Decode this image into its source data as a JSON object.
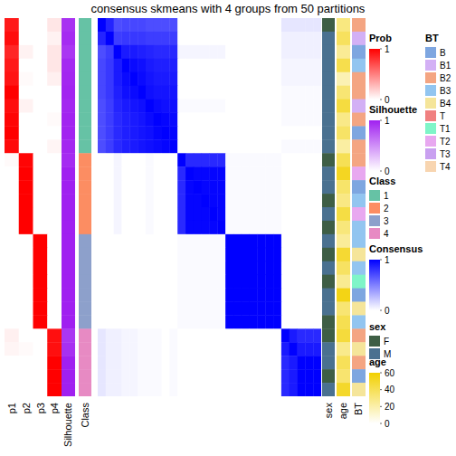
{
  "chart_data": {
    "type": "heatmap",
    "title": "consensus skmeans with 4 groups from 50 partitions",
    "tick_labels": false,
    "prob": {
      "legend_title": "Prob",
      "labels": [
        "p1",
        "p2",
        "p3",
        "p4"
      ],
      "colors": [
        "#FFFFFF",
        "#FF0000"
      ],
      "range": [
        0,
        1
      ],
      "ticks": [
        0,
        1
      ],
      "values": [
        [
          0.9,
          0,
          0,
          0.1
        ],
        [
          0.95,
          0,
          0,
          0.05
        ],
        [
          0.85,
          0.05,
          0,
          0.1
        ],
        [
          0.9,
          0,
          0,
          0.1
        ],
        [
          0.92,
          0.02,
          0,
          0.06
        ],
        [
          1,
          0,
          0,
          0
        ],
        [
          0.95,
          0.05,
          0,
          0
        ],
        [
          0.98,
          0,
          0,
          0.02
        ],
        [
          1,
          0,
          0,
          0
        ],
        [
          0.96,
          0,
          0,
          0.04
        ],
        [
          0.02,
          0.98,
          0,
          0
        ],
        [
          0,
          1,
          0,
          0
        ],
        [
          0,
          1,
          0,
          0
        ],
        [
          0,
          1,
          0,
          0
        ],
        [
          0,
          1,
          0,
          0
        ],
        [
          0,
          1,
          0,
          0
        ],
        [
          0,
          0,
          1,
          0
        ],
        [
          0,
          0,
          1,
          0
        ],
        [
          0,
          0,
          1,
          0
        ],
        [
          0,
          0,
          1,
          0
        ],
        [
          0,
          0,
          1,
          0
        ],
        [
          0,
          0,
          1,
          0
        ],
        [
          0,
          0,
          1,
          0
        ],
        [
          0.06,
          0,
          0,
          0.94
        ],
        [
          0.04,
          0.02,
          0,
          0.94
        ],
        [
          0,
          0,
          0,
          1
        ],
        [
          0,
          0,
          0,
          1
        ],
        [
          0,
          0,
          0,
          1
        ]
      ]
    },
    "silhouette": {
      "label": "Silhouette",
      "colors": [
        "#FFFFFF",
        "#A020F0"
      ],
      "range": [
        0,
        1
      ],
      "ticks": [
        0,
        1
      ],
      "values": [
        0.92,
        0.95,
        0.9,
        0.96,
        0.97,
        0.98,
        0.97,
        0.98,
        0.98,
        0.97,
        0.95,
        1,
        1,
        1,
        1,
        1,
        1,
        1,
        1,
        1,
        1,
        1,
        1,
        0.9,
        0.93,
        1,
        1,
        1
      ]
    },
    "class": {
      "label": "Class",
      "categories": [
        1,
        2,
        3,
        4
      ],
      "colors": [
        "#66C2A5",
        "#FC8D62",
        "#8DA0CB",
        "#E78AC3"
      ],
      "values": [
        1,
        1,
        1,
        1,
        1,
        1,
        1,
        1,
        1,
        1,
        2,
        2,
        2,
        2,
        2,
        2,
        3,
        3,
        3,
        3,
        3,
        3,
        3,
        4,
        4,
        4,
        4,
        4
      ]
    },
    "consensus": {
      "legend_title": "Consensus",
      "colors": [
        "#FFFFFF",
        "#0000FF"
      ],
      "range": [
        0,
        1
      ],
      "ticks": [
        0,
        1
      ],
      "values": [
        [
          1,
          0.86,
          0.7,
          0.72,
          0.72,
          0.72,
          0.7,
          0.7,
          0.7,
          0.7,
          0,
          0,
          0,
          0,
          0,
          0,
          0,
          0,
          0,
          0,
          0,
          0,
          0,
          0.1,
          0.1,
          0.1,
          0.1,
          0.1
        ],
        [
          0.86,
          1,
          0.76,
          0.78,
          0.78,
          0.78,
          0.76,
          0.76,
          0.76,
          0.76,
          0,
          0,
          0,
          0,
          0,
          0,
          0,
          0,
          0,
          0,
          0,
          0,
          0,
          0.06,
          0.06,
          0.06,
          0.06,
          0.06
        ],
        [
          0.7,
          0.76,
          1,
          0.9,
          0.9,
          0.88,
          0.86,
          0.84,
          0.84,
          0.84,
          0.04,
          0.04,
          0.04,
          0.04,
          0.04,
          0.04,
          0,
          0,
          0,
          0,
          0,
          0,
          0,
          0.06,
          0.06,
          0.06,
          0.06,
          0.06
        ],
        [
          0.72,
          0.78,
          0.9,
          1,
          0.96,
          0.94,
          0.9,
          0.88,
          0.88,
          0.88,
          0,
          0,
          0,
          0,
          0,
          0,
          0,
          0,
          0,
          0,
          0,
          0,
          0,
          0.04,
          0.04,
          0.04,
          0.04,
          0.04
        ],
        [
          0.72,
          0.78,
          0.9,
          0.96,
          1,
          0.96,
          0.92,
          0.9,
          0.9,
          0.9,
          0,
          0,
          0,
          0,
          0,
          0,
          0,
          0,
          0,
          0,
          0,
          0,
          0,
          0.04,
          0.04,
          0.04,
          0.04,
          0.04
        ],
        [
          0.72,
          0.78,
          0.88,
          0.94,
          0.96,
          1,
          0.94,
          0.92,
          0.92,
          0.92,
          0,
          0,
          0,
          0,
          0,
          0,
          0,
          0,
          0,
          0,
          0,
          0,
          0,
          0.02,
          0.02,
          0.02,
          0.02,
          0.02
        ],
        [
          0.7,
          0.76,
          0.86,
          0.9,
          0.92,
          0.94,
          1,
          0.96,
          0.94,
          0.94,
          0.02,
          0.02,
          0.02,
          0.02,
          0.02,
          0.02,
          0,
          0,
          0,
          0,
          0,
          0,
          0,
          0.02,
          0.02,
          0.02,
          0.02,
          0.02
        ],
        [
          0.7,
          0.76,
          0.84,
          0.88,
          0.9,
          0.92,
          0.96,
          1,
          0.98,
          0.96,
          0,
          0,
          0,
          0,
          0,
          0,
          0,
          0,
          0,
          0,
          0,
          0,
          0,
          0.02,
          0.02,
          0.02,
          0.02,
          0.02
        ],
        [
          0.7,
          0.76,
          0.84,
          0.88,
          0.9,
          0.92,
          0.94,
          0.98,
          1,
          0.98,
          0,
          0,
          0,
          0,
          0,
          0,
          0,
          0,
          0,
          0,
          0,
          0,
          0,
          0,
          0,
          0,
          0,
          0
        ],
        [
          0.7,
          0.76,
          0.84,
          0.88,
          0.9,
          0.92,
          0.94,
          0.96,
          0.98,
          1,
          0,
          0,
          0,
          0,
          0,
          0,
          0,
          0,
          0,
          0,
          0,
          0,
          0,
          0.02,
          0.02,
          0.02,
          0.02,
          0.02
        ],
        [
          0,
          0,
          0.04,
          0,
          0,
          0,
          0.02,
          0,
          0,
          0,
          1,
          0.84,
          0.84,
          0.84,
          0.84,
          0.84,
          0.02,
          0.02,
          0.02,
          0.02,
          0.02,
          0.02,
          0.02,
          0,
          0,
          0,
          0,
          0
        ],
        [
          0,
          0,
          0.04,
          0,
          0,
          0,
          0.02,
          0,
          0,
          0,
          0.84,
          1,
          0.98,
          0.98,
          0.98,
          0.98,
          0.02,
          0.02,
          0.02,
          0.02,
          0.02,
          0.02,
          0.02,
          0,
          0,
          0,
          0,
          0
        ],
        [
          0,
          0,
          0.04,
          0,
          0,
          0,
          0.02,
          0,
          0,
          0,
          0.84,
          0.98,
          1,
          0.98,
          0.98,
          0.98,
          0.02,
          0.02,
          0.02,
          0.02,
          0.02,
          0.02,
          0.02,
          0,
          0,
          0,
          0,
          0
        ],
        [
          0,
          0,
          0.04,
          0,
          0,
          0,
          0.02,
          0,
          0,
          0,
          0.84,
          0.98,
          0.98,
          1,
          0.98,
          0.98,
          0.02,
          0.02,
          0.02,
          0.02,
          0.02,
          0.02,
          0.02,
          0,
          0,
          0,
          0,
          0
        ],
        [
          0,
          0,
          0.04,
          0,
          0,
          0,
          0.02,
          0,
          0,
          0,
          0.84,
          0.98,
          0.98,
          0.98,
          1,
          0.98,
          0.02,
          0.02,
          0.02,
          0.02,
          0.02,
          0.02,
          0.02,
          0,
          0,
          0,
          0,
          0
        ],
        [
          0,
          0,
          0.04,
          0,
          0,
          0,
          0.02,
          0,
          0,
          0,
          0.84,
          0.98,
          0.98,
          0.98,
          0.98,
          1,
          0.02,
          0.02,
          0.02,
          0.02,
          0.02,
          0.02,
          0.02,
          0,
          0,
          0,
          0,
          0
        ],
        [
          0,
          0,
          0,
          0,
          0,
          0,
          0,
          0,
          0,
          0,
          0.02,
          0.02,
          0.02,
          0.02,
          0.02,
          0.02,
          1,
          1,
          1,
          1,
          1,
          1,
          1,
          0,
          0,
          0,
          0,
          0
        ],
        [
          0,
          0,
          0,
          0,
          0,
          0,
          0,
          0,
          0,
          0,
          0.02,
          0.02,
          0.02,
          0.02,
          0.02,
          0.02,
          1,
          1,
          1,
          1,
          1,
          1,
          1,
          0,
          0,
          0,
          0,
          0
        ],
        [
          0,
          0,
          0,
          0,
          0,
          0,
          0,
          0,
          0,
          0,
          0.02,
          0.02,
          0.02,
          0.02,
          0.02,
          0.02,
          1,
          1,
          1,
          1,
          1,
          1,
          1,
          0,
          0,
          0,
          0,
          0
        ],
        [
          0,
          0,
          0,
          0,
          0,
          0,
          0,
          0,
          0,
          0,
          0.02,
          0.02,
          0.02,
          0.02,
          0.02,
          0.02,
          1,
          1,
          1,
          1,
          1,
          1,
          1,
          0,
          0,
          0,
          0,
          0
        ],
        [
          0,
          0,
          0,
          0,
          0,
          0,
          0,
          0,
          0,
          0,
          0.02,
          0.02,
          0.02,
          0.02,
          0.02,
          0.02,
          1,
          1,
          1,
          1,
          1,
          1,
          1,
          0,
          0,
          0,
          0,
          0
        ],
        [
          0,
          0,
          0,
          0,
          0,
          0,
          0,
          0,
          0,
          0,
          0.02,
          0.02,
          0.02,
          0.02,
          0.02,
          0.02,
          1,
          1,
          1,
          1,
          1,
          1,
          1,
          0,
          0,
          0,
          0,
          0
        ],
        [
          0,
          0,
          0,
          0,
          0,
          0,
          0,
          0,
          0,
          0,
          0.02,
          0.02,
          0.02,
          0.02,
          0.02,
          0.02,
          1,
          1,
          1,
          1,
          1,
          1,
          1,
          0,
          0,
          0,
          0,
          0
        ],
        [
          0.1,
          0.06,
          0.06,
          0.04,
          0.04,
          0.02,
          0.02,
          0.02,
          0,
          0.02,
          0,
          0,
          0,
          0,
          0,
          0,
          0,
          0,
          0,
          0,
          0,
          0,
          0,
          1,
          0.9,
          0.84,
          0.84,
          0.84
        ],
        [
          0.1,
          0.06,
          0.06,
          0.04,
          0.04,
          0.02,
          0.02,
          0.02,
          0,
          0.02,
          0,
          0,
          0,
          0,
          0,
          0,
          0,
          0,
          0,
          0,
          0,
          0,
          0,
          0.9,
          1,
          0.9,
          0.9,
          0.9
        ],
        [
          0.1,
          0.06,
          0.06,
          0.04,
          0.04,
          0.02,
          0.02,
          0.02,
          0,
          0.02,
          0,
          0,
          0,
          0,
          0,
          0,
          0,
          0,
          0,
          0,
          0,
          0,
          0,
          0.84,
          0.9,
          1,
          1,
          1
        ],
        [
          0.1,
          0.06,
          0.06,
          0.04,
          0.04,
          0.02,
          0.02,
          0.02,
          0,
          0.02,
          0,
          0,
          0,
          0,
          0,
          0,
          0,
          0,
          0,
          0,
          0,
          0,
          0,
          0.84,
          0.9,
          1,
          1,
          1
        ],
        [
          0.1,
          0.06,
          0.06,
          0.04,
          0.04,
          0.02,
          0.02,
          0.02,
          0,
          0.02,
          0,
          0,
          0,
          0,
          0,
          0,
          0,
          0,
          0,
          0,
          0,
          0,
          0,
          0.84,
          0.9,
          1,
          1,
          1
        ]
      ]
    },
    "sex": {
      "label": "sex",
      "categories": [
        "F",
        "M"
      ],
      "colors": [
        "#3E5E45",
        "#4A7190"
      ],
      "values": [
        "F",
        "M",
        "M",
        "M",
        "M",
        "M",
        "M",
        "M",
        "M",
        "M",
        "F",
        "M",
        "M",
        "F",
        "M",
        "F",
        "M",
        "F",
        "M",
        "F",
        "M",
        "M",
        "F",
        "F",
        "M",
        "M",
        "F",
        "M"
      ]
    },
    "age": {
      "label": "age",
      "colors": [
        "#FFFFFF",
        "#F2D000"
      ],
      "range": [
        0,
        60
      ],
      "ticks": [
        0,
        20,
        40,
        60
      ],
      "values": [
        30,
        38,
        25,
        42,
        18,
        33,
        45,
        28,
        36,
        22,
        40,
        52,
        35,
        29,
        44,
        31,
        24,
        48,
        37,
        26,
        55,
        33,
        41,
        46,
        27,
        39,
        34,
        50
      ]
    },
    "BT": {
      "label": "BT",
      "categories": [
        "B",
        "B1",
        "B2",
        "B3",
        "B4",
        "T",
        "T1",
        "T2",
        "T3",
        "T4"
      ],
      "colors": [
        "#7EA6E0",
        "#D3B0F5",
        "#F4A582",
        "#92C5F0",
        "#F5E59A",
        "#F08080",
        "#7FF5C8",
        "#E8A8F0",
        "#C9A0F0",
        "#F8D5B0"
      ],
      "values": [
        "B2",
        "B1",
        "B",
        "B3",
        "B2",
        "B2",
        "B1",
        "B2",
        "B",
        "B2",
        "B2",
        "T2",
        "B",
        "B3",
        "T2",
        "B3",
        "B3",
        "B4",
        "B3",
        "T1",
        "B",
        "B4",
        "B3",
        "B2",
        "B4",
        "B2",
        "B",
        "B4"
      ]
    }
  }
}
